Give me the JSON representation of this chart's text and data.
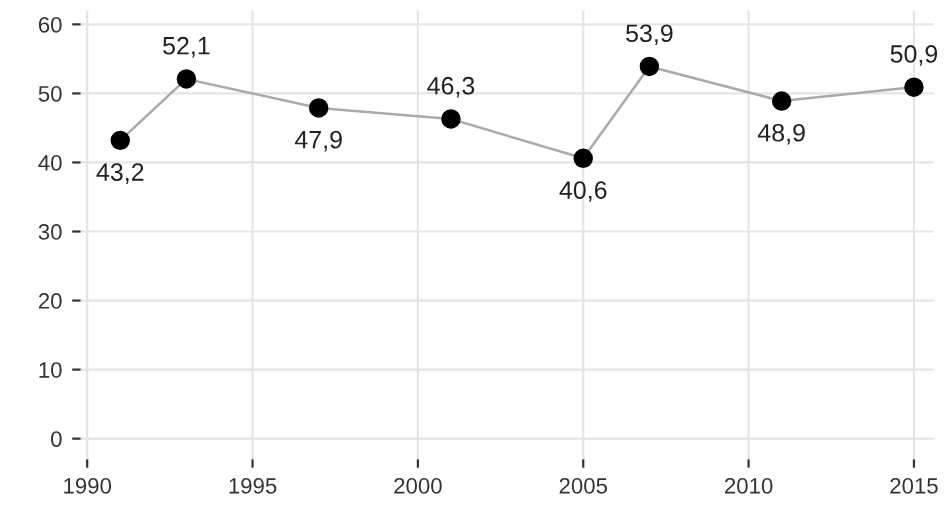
{
  "chart_data": {
    "type": "line",
    "x": [
      1991,
      1993,
      1997,
      2001,
      2005,
      2007,
      2011,
      2015
    ],
    "series": [
      {
        "color": "#000000",
        "values": [
          43.2,
          52.1,
          47.9,
          46.3,
          40.6,
          53.9,
          48.9,
          50.9
        ],
        "value_labels": [
          "43,2",
          "52,1",
          "47,9",
          "46,3",
          "40,6",
          "53,9",
          "48,9",
          "50,9"
        ]
      }
    ],
    "xlim": [
      1989.8,
      2015.6
    ],
    "xticks": [
      1990,
      1995,
      2000,
      2005,
      2010,
      2015
    ],
    "ylim": [
      -3,
      62
    ],
    "yticks": [
      0,
      10,
      20,
      30,
      40,
      50,
      60
    ],
    "grid": true,
    "marker": "circle",
    "line_style": "solid",
    "legend": false
  }
}
